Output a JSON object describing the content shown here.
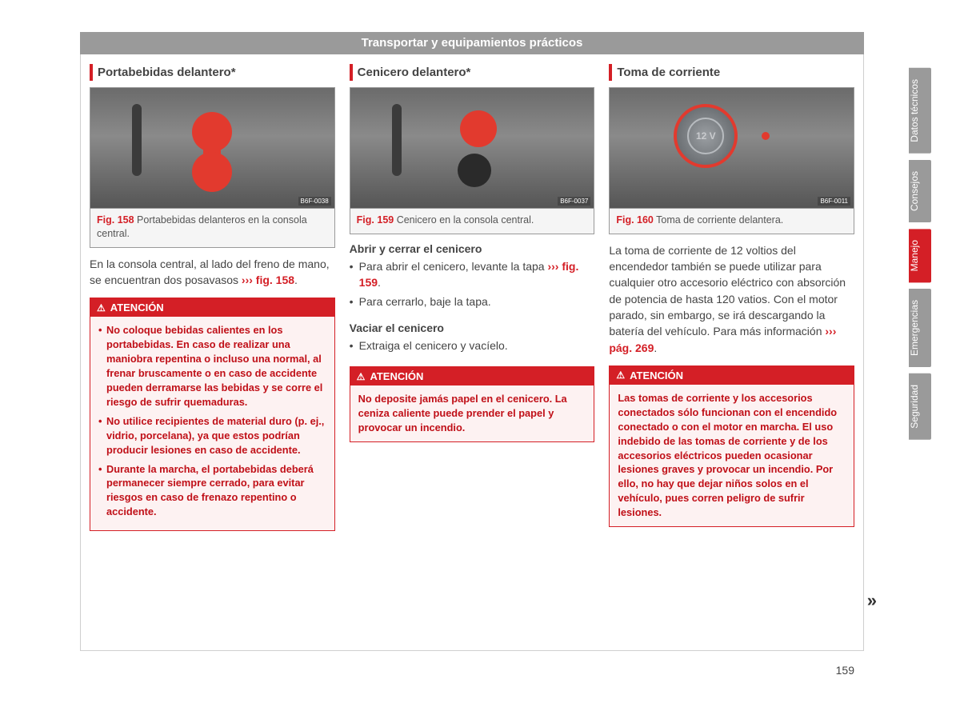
{
  "header": {
    "title": "Transportar y equipamientos prácticos"
  },
  "page_number": "159",
  "tabs": [
    {
      "label": "Datos técnicos",
      "style": "grey"
    },
    {
      "label": "Consejos",
      "style": "grey"
    },
    {
      "label": "Manejo",
      "style": "red"
    },
    {
      "label": "Emergencias",
      "style": "grey"
    },
    {
      "label": "Seguridad",
      "style": "grey"
    }
  ],
  "columns": {
    "col1": {
      "title": "Portabebidas delantero*",
      "figure": {
        "label": "Fig. 158",
        "caption": "Portabebidas delanteros en la consola central.",
        "code": "B6F-0038"
      },
      "body_pre": "En la consola central, al lado del freno de mano, se encuentran dos posavasos ",
      "body_ref": "››› fig. 158",
      "body_post": ".",
      "warn": {
        "title": "ATENCIÓN",
        "items": [
          "No coloque bebidas calientes en los portabebidas. En caso de realizar una maniobra repentina o incluso una normal, al frenar bruscamente o en caso de accidente pueden derramarse las bebidas y se corre el riesgo de sufrir quemaduras.",
          "No utilice recipientes de material duro (p. ej., vidrio, porcelana), ya que estos podrían producir lesiones en caso de accidente.",
          "Durante la marcha, el portabebidas deberá permanecer siempre cerrado, para evitar riesgos en caso de frenazo repentino o accidente."
        ]
      }
    },
    "col2": {
      "title": "Cenicero delantero*",
      "figure": {
        "label": "Fig. 159",
        "caption": "Cenicero en la consola central.",
        "code": "B6F-0037"
      },
      "sub1": {
        "head": "Abrir y cerrar el cenicero",
        "items_pre": "Para abrir el cenicero, levante la tapa ",
        "items_ref": "››› fig. 159",
        "items_post": ".",
        "item2": "Para cerrarlo, baje la tapa."
      },
      "sub2": {
        "head": "Vaciar el cenicero",
        "item1": "Extraiga el cenicero y vacíelo."
      },
      "warn": {
        "title": "ATENCIÓN",
        "text": "No deposite jamás papel en el cenicero. La ceniza caliente puede prender el papel y provocar un incendio."
      }
    },
    "col3": {
      "title": "Toma de corriente",
      "figure": {
        "label": "Fig. 160",
        "caption": "Toma de corriente delantera.",
        "code": "B6F-0011",
        "socket_label": "12 V"
      },
      "body_pre": "La toma de corriente de 12 voltios del encendedor también se puede utilizar para cualquier otro accesorio eléctrico con absorción de potencia de hasta 120 vatios. Con el motor parado, sin embargo, se irá descargando la batería del vehículo. Para más información ",
      "body_ref": "››› pág. 269",
      "body_post": ".",
      "warn": {
        "title": "ATENCIÓN",
        "text": "Las tomas de corriente y los accesorios conectados sólo funcionan con el encendido conectado o con el motor en marcha. El uso indebido de las tomas de corriente y de los accesorios eléctricos pueden ocasionar lesiones graves y provocar un incendio. Por ello, no hay que dejar niños solos en el vehículo, pues corren peligro de sufrir lesiones."
      }
    }
  },
  "colors": {
    "accent": "#d41f26",
    "header_grey": "#9a9a9a",
    "warn_text": "#c01018"
  }
}
